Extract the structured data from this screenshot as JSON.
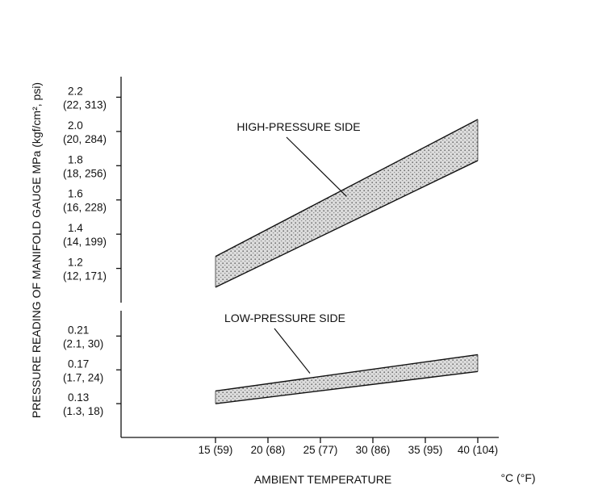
{
  "chart_data": {
    "type": "area",
    "title": "",
    "xlabel": "AMBIENT TEMPERATURE",
    "x_unit": "°C (°F)",
    "ylabel": "PRESSURE READING OF MANIFOLD GAUGE MPa (kgf/cm², psi)",
    "x": [
      15,
      20,
      25,
      30,
      35,
      40
    ],
    "x_tick_labels": [
      "15 (59)",
      "20 (68)",
      "25 (77)",
      "30 (86)",
      "35 (95)",
      "40 (104)"
    ],
    "xlim": [
      6,
      42
    ],
    "y_axis_broken": true,
    "y_upper_segment": {
      "ylim": [
        1.0,
        2.32
      ],
      "ticks": [
        {
          "value": 1.2,
          "line1": "1.2",
          "line2": "(12, 171)"
        },
        {
          "value": 1.4,
          "line1": "1.4",
          "line2": "(14, 199)"
        },
        {
          "value": 1.6,
          "line1": "1.6",
          "line2": "(16, 228)"
        },
        {
          "value": 1.8,
          "line1": "1.8",
          "line2": "(18, 256)"
        },
        {
          "value": 2.0,
          "line1": "2.0",
          "line2": "(20, 284)"
        },
        {
          "value": 2.2,
          "line1": "2.2",
          "line2": "(22, 313)"
        }
      ]
    },
    "y_lower_segment": {
      "ylim": [
        0.09,
        0.24
      ],
      "ticks": [
        {
          "value": 0.13,
          "line1": "0.13",
          "line2": "(1.3, 18)"
        },
        {
          "value": 0.17,
          "line1": "0.17",
          "line2": "(1.7, 24)"
        },
        {
          "value": 0.21,
          "line1": "0.21",
          "line2": "(2.1, 30)"
        }
      ]
    },
    "series": [
      {
        "name": "HIGH-PRESSURE SIDE",
        "segment": "upper",
        "x_range": [
          15,
          40
        ],
        "lower_bound": [
          1.09,
          1.83
        ],
        "upper_bound": [
          1.27,
          2.07
        ],
        "annotation_point": [
          27.5,
          1.62
        ]
      },
      {
        "name": "LOW-PRESSURE SIDE",
        "segment": "lower",
        "x_range": [
          15,
          40
        ],
        "lower_bound": [
          0.13,
          0.168
        ],
        "upper_bound": [
          0.145,
          0.188
        ],
        "annotation_point": [
          24,
          0.166
        ]
      }
    ],
    "grid": false,
    "legend": "none"
  }
}
